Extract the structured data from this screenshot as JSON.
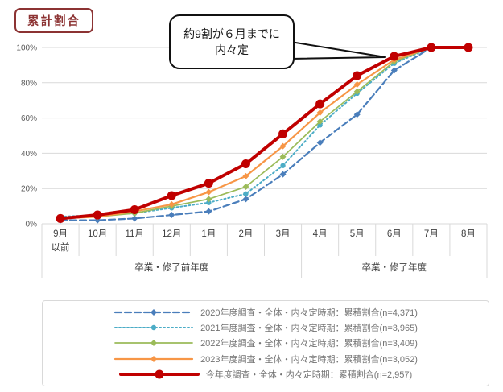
{
  "title": "累計割合",
  "callout": {
    "line1": "約9割が６月までに",
    "line2": "内々定"
  },
  "colors": {
    "grid": "#D9D9D9",
    "axis_text": "#595959",
    "month_text": "#404040",
    "legend_text": "#737373",
    "title": "#8C3333",
    "callout_border": "#111111"
  },
  "chart_data": {
    "type": "line",
    "categories": [
      "9月以前",
      "10月",
      "11月",
      "12月",
      "1月",
      "2月",
      "3月",
      "4月",
      "5月",
      "6月",
      "7月",
      "8月"
    ],
    "category_labels": [
      {
        "label": "9月",
        "sub": "以前"
      },
      {
        "label": "10月"
      },
      {
        "label": "11月"
      },
      {
        "label": "12月"
      },
      {
        "label": "1月"
      },
      {
        "label": "2月"
      },
      {
        "label": "3月"
      },
      {
        "label": "4月"
      },
      {
        "label": "5月"
      },
      {
        "label": "6月"
      },
      {
        "label": "7月"
      },
      {
        "label": "8月"
      }
    ],
    "group_labels": [
      {
        "label": "卒業・修了前年度",
        "from": 0,
        "to": 7
      },
      {
        "label": "卒業・修了年度",
        "from": 7,
        "to": 12
      }
    ],
    "ylim": [
      0,
      100
    ],
    "yticks": [
      {
        "value": 0,
        "label": "0%"
      },
      {
        "value": 20,
        "label": "20%"
      },
      {
        "value": 40,
        "label": "40%"
      },
      {
        "value": 60,
        "label": "60%"
      },
      {
        "value": 80,
        "label": "80%"
      },
      {
        "value": 100,
        "label": "100%"
      }
    ],
    "grid": true,
    "legend_position": "bottom",
    "annotation": "約9割が６月までに内々定",
    "annotation_target": {
      "category": "6月",
      "series": "今年度",
      "value": 95
    },
    "series": [
      {
        "name": "2020年度調査・全体・内々定時期：累積割合(n=4,371)",
        "color": "#4A7EBB",
        "line": "dashed",
        "marker": "diamond",
        "width": 2.2,
        "values": [
          2,
          2,
          3,
          5,
          7,
          14,
          28,
          46,
          62,
          87,
          100,
          100
        ]
      },
      {
        "name": "2021年度調査・全体・内々定時期：累積割合(n=3,965)",
        "color": "#4BACC6",
        "line": "dotted",
        "marker": "circle",
        "width": 2.0,
        "values": [
          4,
          5,
          6,
          9,
          12,
          17,
          33,
          56,
          74,
          91,
          100,
          100
        ]
      },
      {
        "name": "2022年度調査・全体・内々定時期：累積割合(n=3,409)",
        "color": "#9BBB59",
        "line": "solid",
        "marker": "diamond",
        "width": 1.7,
        "values": [
          3,
          4,
          6,
          10,
          14,
          21,
          38,
          58,
          75,
          92,
          100,
          100
        ]
      },
      {
        "name": "2023年度調査・全体・内々定時期：累積割合(n=3,052)",
        "color": "#F79646",
        "line": "solid",
        "marker": "diamond",
        "width": 2.2,
        "values": [
          3,
          4,
          7,
          11,
          18,
          27,
          44,
          63,
          79,
          93,
          100,
          100
        ]
      },
      {
        "name": "今年度調査・全体・内々定時期：累積割合(n=2,957)",
        "color": "#C00000",
        "line": "solid",
        "marker": "circle",
        "width": 4.0,
        "values": [
          3,
          5,
          8,
          16,
          23,
          34,
          51,
          68,
          84,
          95,
          100,
          100
        ]
      }
    ]
  }
}
